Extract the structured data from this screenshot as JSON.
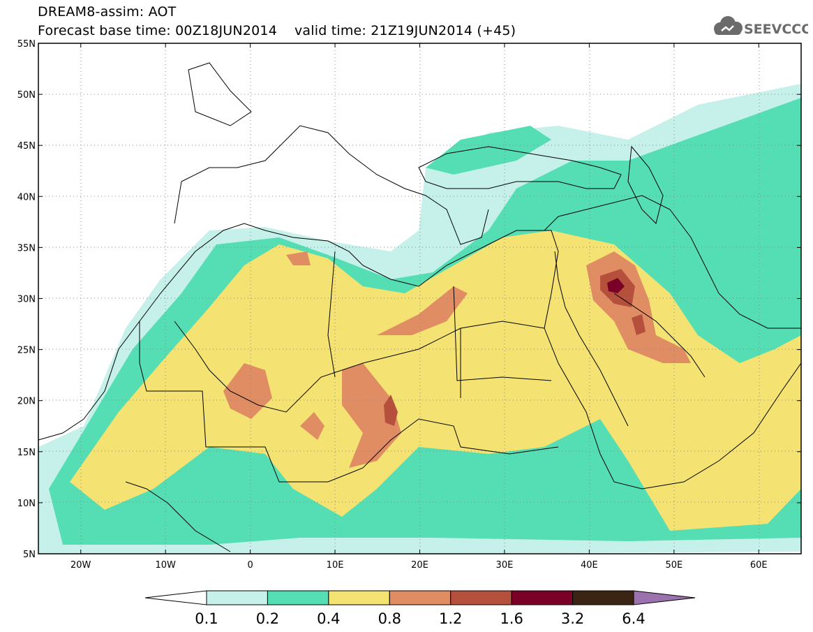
{
  "header": {
    "title": "DREAM8-assim: AOT",
    "base_time_label": "Forecast base time: 00Z18JUN2014",
    "valid_time_label": "valid time: 21Z19JUN2014 (+45)"
  },
  "logo": {
    "text": "SEEVCCC",
    "icon": "cloud-icon",
    "color": "#6b6b6b"
  },
  "map": {
    "lon_ticks": [
      "20W",
      "10W",
      "0",
      "10E",
      "20E",
      "30E",
      "40E",
      "50E",
      "60E"
    ],
    "lat_ticks": [
      "55N",
      "50N",
      "45N",
      "40N",
      "35N",
      "30N",
      "25N",
      "20N",
      "15N",
      "10N",
      "5N"
    ],
    "lon_range": [
      -25,
      65
    ],
    "lat_range": [
      5,
      55
    ]
  },
  "colorbar": {
    "labels": [
      "0.1",
      "0.2",
      "0.4",
      "0.8",
      "1.2",
      "1.6",
      "3.2",
      "6.4"
    ],
    "colors": [
      "#ffffff",
      "#c6f0ea",
      "#55deb4",
      "#f4e272",
      "#e08d64",
      "#b4503c",
      "#7a0028",
      "#3b2414",
      "#9b72ad"
    ]
  }
}
